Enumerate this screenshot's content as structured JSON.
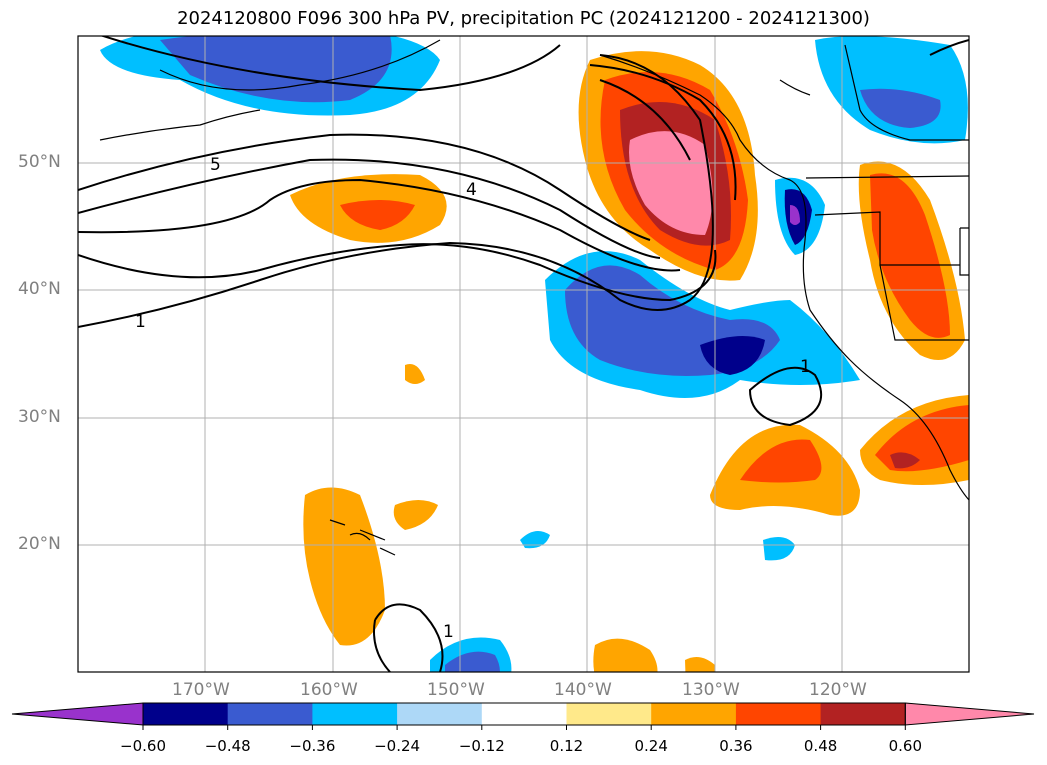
{
  "title": "2024120800 F096 300 hPa PV, precipitation PC (2024121200 - 2024121300)",
  "lat_labels": [
    "50°N",
    "40°N",
    "30°N",
    "20°N"
  ],
  "lon_labels": [
    "170°W",
    "160°W",
    "150°W",
    "140°W",
    "130°W",
    "120°W"
  ],
  "contour_labels": [
    "5",
    "4",
    "1",
    "1",
    "1"
  ],
  "colorbar": {
    "ticks": [
      "−0.60",
      "−0.48",
      "−0.36",
      "−0.24",
      "−0.12",
      "0.12",
      "0.24",
      "0.36",
      "0.48",
      "0.60"
    ],
    "colors": [
      "#9932cc",
      "#00008b",
      "#3a5bd0",
      "#00bfff",
      "#add8f7",
      "#ffffff",
      "#ffe98a",
      "#ffa500",
      "#ff4500",
      "#b22222",
      "#ff88aa"
    ]
  },
  "colors": {
    "land_outline": "#000000",
    "grid": "#b0b0b0",
    "pv_contour": "#000000"
  }
}
